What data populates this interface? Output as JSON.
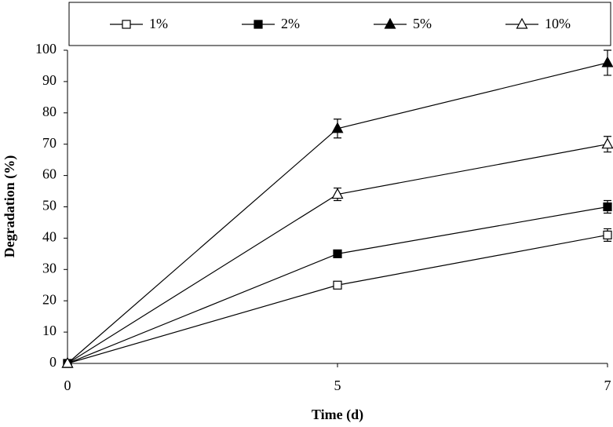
{
  "chart_data": {
    "type": "line",
    "x_label": "Time (d)",
    "y_label": "Degradation (%)",
    "categories": [
      "0",
      "5",
      "7"
    ],
    "series": [
      {
        "name": "1%",
        "color": "#000000",
        "marker": "square",
        "filled": false,
        "values": [
          0,
          25,
          41
        ],
        "errors": [
          0,
          1,
          2
        ]
      },
      {
        "name": "2%",
        "color": "#000000",
        "marker": "square",
        "filled": true,
        "values": [
          0,
          35,
          50
        ],
        "errors": [
          0,
          1,
          2
        ]
      },
      {
        "name": "5%",
        "color": "#000000",
        "marker": "triangle",
        "filled": true,
        "values": [
          0,
          75,
          96
        ],
        "errors": [
          0,
          3,
          4
        ]
      },
      {
        "name": "10%",
        "color": "#000000",
        "marker": "triangle",
        "filled": false,
        "values": [
          0,
          54,
          70
        ],
        "errors": [
          0,
          2,
          2.5
        ]
      }
    ],
    "ylim": [
      0,
      100
    ],
    "yticks": [
      0,
      10,
      20,
      30,
      40,
      50,
      60,
      70,
      80,
      90,
      100
    ],
    "grid": false,
    "legend": "top"
  }
}
